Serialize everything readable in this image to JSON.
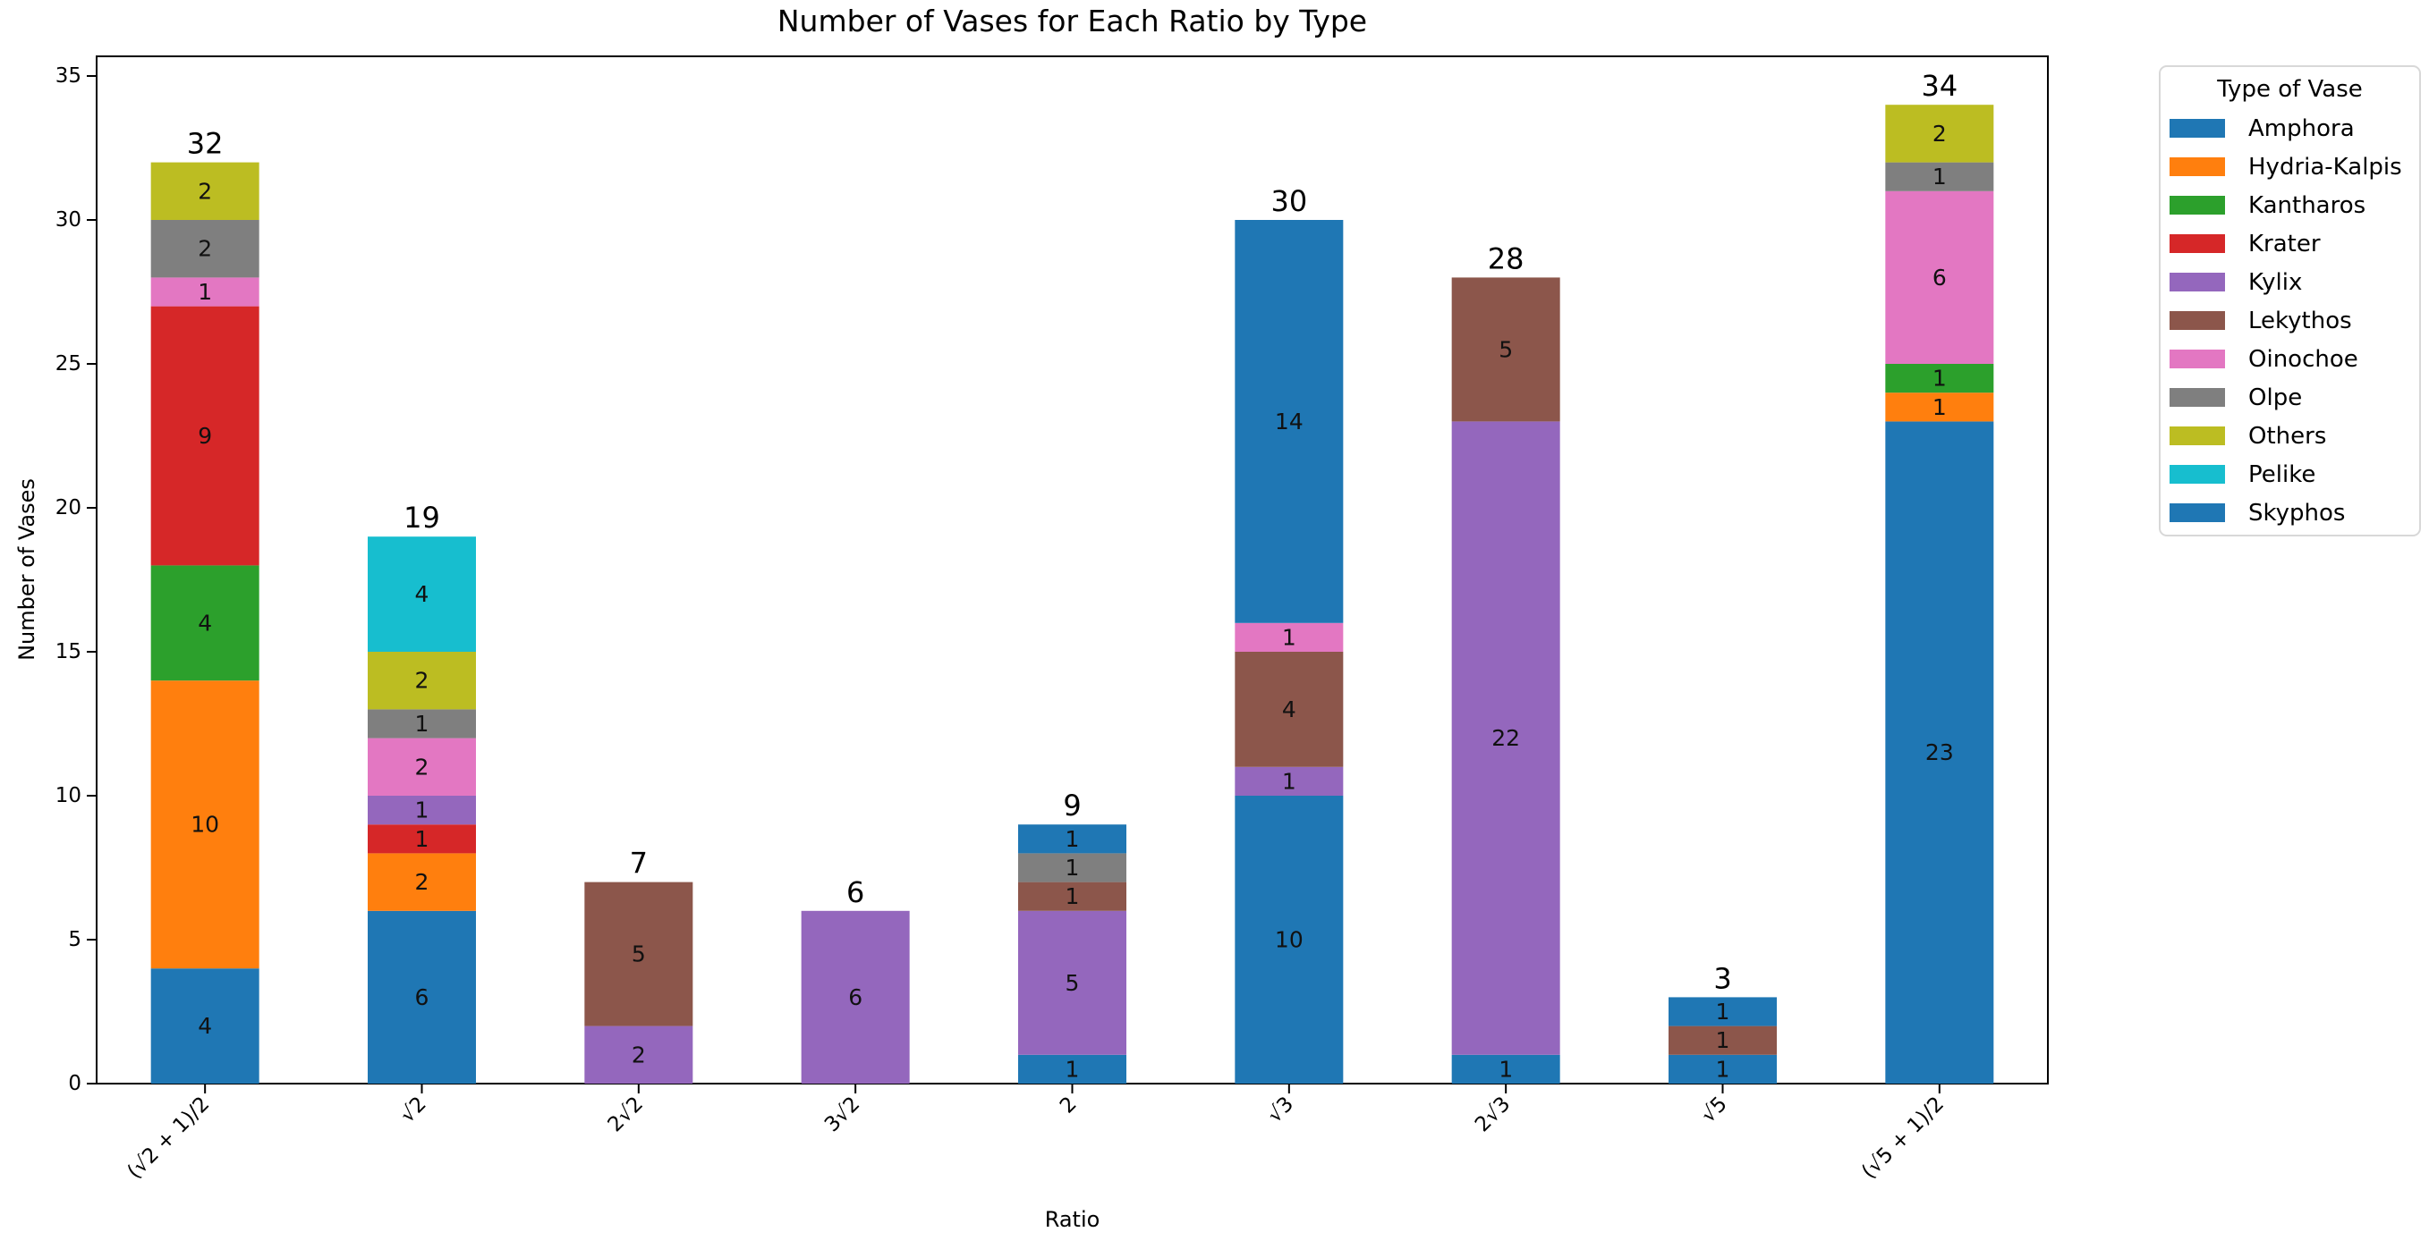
{
  "figure": {
    "background": "#ffffff"
  },
  "chart_data": {
    "type": "bar",
    "stacked": true,
    "title": "Number of Vases for Each Ratio by Type",
    "xlabel": "Ratio",
    "ylabel": "Number of Vases",
    "ylim": [
      0,
      35
    ],
    "yticks": [
      0,
      5,
      10,
      15,
      20,
      25,
      30,
      35
    ],
    "grid": false,
    "categories": [
      "(√2 + 1)/2",
      "√2",
      "2√2",
      "3√2",
      "2",
      "√3",
      "2√3",
      "√5",
      "(√5 + 1)/2"
    ],
    "series": [
      {
        "name": "Amphora",
        "color": "#1f77b4",
        "values": [
          4,
          6,
          0,
          0,
          1,
          10,
          1,
          1,
          23
        ]
      },
      {
        "name": "Hydria-Kalpis",
        "color": "#ff7f0e",
        "values": [
          10,
          2,
          0,
          0,
          0,
          0,
          0,
          0,
          1
        ]
      },
      {
        "name": "Kantharos",
        "color": "#2ca02c",
        "values": [
          4,
          0,
          0,
          0,
          0,
          0,
          0,
          0,
          1
        ]
      },
      {
        "name": "Krater",
        "color": "#d62728",
        "values": [
          9,
          1,
          0,
          0,
          0,
          0,
          0,
          0,
          0
        ]
      },
      {
        "name": "Kylix",
        "color": "#9467bd",
        "values": [
          0,
          1,
          2,
          6,
          5,
          1,
          22,
          0,
          0
        ]
      },
      {
        "name": "Lekythos",
        "color": "#8c564b",
        "values": [
          0,
          0,
          5,
          0,
          1,
          4,
          5,
          1,
          0
        ]
      },
      {
        "name": "Oinochoe",
        "color": "#e377c2",
        "values": [
          1,
          2,
          0,
          0,
          0,
          1,
          0,
          0,
          6
        ]
      },
      {
        "name": "Olpe",
        "color": "#7f7f7f",
        "values": [
          2,
          1,
          0,
          0,
          1,
          0,
          0,
          0,
          1
        ]
      },
      {
        "name": "Others",
        "color": "#bcbd22",
        "values": [
          2,
          2,
          0,
          0,
          0,
          0,
          0,
          0,
          2
        ]
      },
      {
        "name": "Pelike",
        "color": "#17becf",
        "values": [
          0,
          4,
          0,
          0,
          0,
          0,
          0,
          0,
          0
        ]
      },
      {
        "name": "Skyphos",
        "color": "#1f77b4",
        "values": [
          0,
          0,
          0,
          0,
          1,
          14,
          0,
          1,
          0
        ]
      }
    ],
    "bar_totals": [
      32,
      19,
      7,
      6,
      9,
      30,
      28,
      3,
      34
    ],
    "legend": {
      "title": "Type of Vase",
      "position": "outside-upper-right"
    },
    "axis_color": "#000000",
    "segment_label_color": "#111111"
  }
}
